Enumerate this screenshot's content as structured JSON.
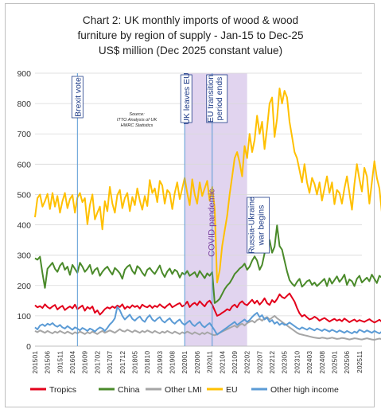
{
  "chart_data": {
    "type": "line",
    "title_lines": [
      "Chart 2: UK monthly imports of wood & wood",
      "furniture by region of supply - Jan-15 to Dec-25",
      "US$ million (Dec 2025 constant value)"
    ],
    "ylim": [
      0,
      900
    ],
    "yticks": [
      0,
      100,
      200,
      300,
      400,
      500,
      600,
      700,
      800,
      900
    ],
    "x_tick_labels": [
      "201501",
      "201506",
      "201511",
      "201604",
      "201609",
      "201702",
      "201707",
      "201712",
      "201805",
      "201810",
      "201903",
      "201908",
      "202001",
      "202006",
      "202011",
      "202104",
      "202109",
      "202202",
      "202207",
      "202212",
      "202305",
      "202310",
      "202403",
      "202408",
      "202501",
      "202506",
      "202511"
    ],
    "x_start": "2015-01",
    "x_end": "2025-12",
    "source_lines": [
      "Source:",
      "ITTO Analysis of UK",
      "HMRC Statistics"
    ],
    "annotations": {
      "brexit": {
        "label": "Brexit vote",
        "date": "2016-06"
      },
      "uk_leaves": {
        "label": "UK leaves EU",
        "date": "2020-01"
      },
      "transition": {
        "label_lines": [
          "EU transition",
          "period ends"
        ],
        "date": "2020-12"
      },
      "covid": {
        "label": "COVID pandemic",
        "start": "2020-01",
        "end": "2022-02"
      },
      "ukraine": {
        "label_lines": [
          "Russia-Ukraine",
          "war begins"
        ],
        "date": "2022-02"
      }
    },
    "series": [
      {
        "name": "Tropics",
        "color": "#e3001b",
        "start": "2015-01",
        "values": [
          135,
          128,
          132,
          126,
          138,
          129,
          124,
          131,
          136,
          121,
          128,
          133,
          119,
          126,
          131,
          125,
          137,
          122,
          128,
          134,
          117,
          129,
          123,
          131,
          110,
          118,
          104,
          112,
          122,
          128,
          124,
          131,
          126,
          134,
          129,
          138,
          123,
          131,
          126,
          135,
          129,
          133,
          124,
          137,
          131,
          128,
          135,
          126,
          133,
          129,
          138,
          131,
          126,
          134,
          140,
          128,
          133,
          138,
          142,
          131,
          136,
          147,
          129,
          138,
          143,
          135,
          148,
          139,
          131,
          144,
          150,
          137,
          118,
          100,
          104,
          110,
          115,
          122,
          118,
          131,
          137,
          128,
          142,
          148,
          139,
          135,
          144,
          153,
          141,
          150,
          137,
          146,
          158,
          142,
          136,
          152,
          144,
          155,
          171,
          162,
          158,
          166,
          174,
          160,
          147,
          126,
          108,
          98,
          103,
          95,
          88,
          91,
          97,
          92,
          84,
          89,
          93,
          87,
          81,
          86,
          90,
          84,
          88,
          82,
          91,
          85,
          79,
          84,
          88,
          81,
          86,
          83,
          80,
          85,
          89,
          83,
          78,
          82,
          87,
          80,
          84,
          79,
          83,
          86,
          80,
          77,
          82,
          85,
          79,
          81,
          84,
          78,
          80,
          83,
          82,
          79,
          81,
          84,
          78,
          80,
          82
        ]
      },
      {
        "name": "China",
        "color": "#4a8a2a",
        "start": "2015-01",
        "values": [
          290,
          285,
          295,
          240,
          192,
          255,
          265,
          275,
          255,
          245,
          265,
          275,
          252,
          262,
          235,
          268,
          255,
          242,
          275,
          262,
          245,
          255,
          268,
          238,
          252,
          258,
          232,
          245,
          255,
          262,
          248,
          236,
          258,
          250,
          240,
          222,
          252,
          262,
          268,
          248,
          238,
          264,
          256,
          242,
          232,
          252,
          258,
          246,
          238,
          252,
          266,
          242,
          228,
          246,
          256,
          238,
          252,
          246,
          226,
          242,
          236,
          248,
          232,
          238,
          244,
          228,
          248,
          236,
          224,
          240,
          232,
          244,
          142,
          148,
          156,
          172,
          188,
          200,
          208,
          222,
          238,
          246,
          256,
          262,
          272,
          252,
          262,
          282,
          296,
          282,
          252,
          268,
          306,
          338,
          350,
          308,
          328,
          398,
          330,
          318,
          282,
          246,
          218,
          206,
          198,
          212,
          222,
          196,
          204,
          214,
          218,
          202,
          210,
          198,
          206,
          214,
          222,
          198,
          224,
          206,
          218,
          230,
          212,
          222,
          236,
          202,
          220,
          214,
          198,
          222,
          232,
          210,
          218,
          226,
          214,
          236,
          222,
          208,
          232,
          226,
          214,
          238,
          218,
          228,
          242,
          232,
          218,
          236,
          210,
          224,
          232,
          216,
          238,
          228,
          244,
          206,
          224,
          232,
          218,
          238,
          250
        ]
      },
      {
        "name": "Other LMI",
        "color": "#a6a6a6",
        "start": "2015-01",
        "values": [
          50,
          46,
          52,
          48,
          44,
          50,
          46,
          42,
          48,
          44,
          50,
          46,
          42,
          48,
          44,
          40,
          46,
          42,
          48,
          44,
          40,
          46,
          42,
          48,
          44,
          40,
          46,
          50,
          44,
          48,
          52,
          48,
          44,
          50,
          56,
          50,
          48,
          54,
          50,
          46,
          52,
          48,
          44,
          50,
          46,
          52,
          48,
          44,
          50,
          46,
          42,
          48,
          44,
          50,
          46,
          42,
          48,
          44,
          40,
          46,
          42,
          48,
          44,
          40,
          46,
          42,
          38,
          44,
          40,
          46,
          42,
          38,
          36,
          40,
          44,
          48,
          52,
          56,
          60,
          64,
          68,
          62,
          70,
          74,
          68,
          76,
          80,
          84,
          78,
          86,
          90,
          84,
          92,
          96,
          88,
          94,
          100,
          92,
          86,
          80,
          74,
          68,
          62,
          56,
          50,
          44,
          40,
          38,
          36,
          34,
          32,
          30,
          28,
          27,
          26,
          28,
          27,
          25,
          26,
          28,
          26,
          24,
          25,
          27,
          26,
          24,
          22,
          24,
          26,
          25,
          23,
          22,
          24,
          26,
          24,
          22,
          21,
          23,
          25,
          23,
          22,
          24,
          23,
          21,
          22,
          24,
          23,
          22,
          21,
          23,
          24,
          22,
          21,
          23,
          24,
          22,
          21,
          23,
          24,
          22,
          23
        ]
      },
      {
        "name": "EU",
        "color": "#ffc000",
        "start": "2015-01",
        "values": [
          425,
          488,
          500,
          460,
          478,
          502,
          452,
          505,
          460,
          495,
          440,
          478,
          505,
          455,
          485,
          498,
          440,
          490,
          505,
          475,
          488,
          402,
          465,
          500,
          418,
          440,
          460,
          385,
          478,
          445,
          525,
          470,
          440,
          498,
          515,
          455,
          488,
          505,
          445,
          492,
          465,
          520,
          480,
          450,
          495,
          462,
          548,
          505,
          520,
          475,
          545,
          530,
          470,
          515,
          505,
          452,
          505,
          540,
          485,
          520,
          555,
          505,
          465,
          550,
          500,
          470,
          540,
          495,
          520,
          545,
          480,
          525,
          455,
          210,
          250,
          330,
          380,
          430,
          500,
          560,
          620,
          640,
          605,
          560,
          660,
          620,
          700,
          640,
          680,
          760,
          700,
          740,
          650,
          720,
          800,
          820,
          690,
          750,
          850,
          800,
          842,
          820,
          740,
          690,
          640,
          620,
          580,
          540,
          600,
          540,
          505,
          555,
          535,
          500,
          540,
          480,
          520,
          560,
          505,
          540,
          468,
          515,
          505,
          470,
          520,
          560,
          505,
          450,
          535,
          600,
          550,
          510,
          588,
          560,
          470,
          540,
          610,
          555,
          520,
          440,
          505,
          570,
          608,
          530,
          480,
          560,
          655,
          580,
          505,
          420,
          560,
          605,
          540,
          640,
          672,
          560,
          520,
          600,
          612,
          540,
          460
        ]
      },
      {
        "name": "Other high income",
        "color": "#5b9bd5",
        "start": "2015-01",
        "values": [
          62,
          55,
          68,
          72,
          66,
          74,
          70,
          76,
          68,
          64,
          70,
          62,
          58,
          66,
          60,
          54,
          62,
          58,
          52,
          60,
          56,
          50,
          58,
          54,
          48,
          56,
          62,
          58,
          50,
          60,
          72,
          80,
          92,
          130,
          118,
          100,
          88,
          96,
          104,
          90,
          84,
          92,
          98,
          86,
          80,
          94,
          102,
          88,
          82,
          90,
          96,
          84,
          78,
          86,
          92,
          80,
          74,
          82,
          88,
          76,
          70,
          78,
          84,
          72,
          66,
          74,
          80,
          68,
          62,
          70,
          76,
          64,
          52,
          38,
          44,
          50,
          56,
          62,
          68,
          74,
          80,
          70,
          76,
          82,
          88,
          80,
          86,
          96,
          104,
          110,
          96,
          102,
          88,
          94,
          80,
          86,
          74,
          80,
          70,
          76,
          70,
          72,
          78,
          72,
          66,
          60,
          56,
          62,
          58,
          54,
          60,
          56,
          52,
          58,
          54,
          50,
          56,
          52,
          48,
          54,
          50,
          46,
          52,
          48,
          44,
          50,
          46,
          42,
          48,
          44,
          54,
          50,
          46,
          52,
          48,
          44,
          50,
          46,
          42,
          48,
          44,
          50,
          46,
          42,
          48,
          54,
          60,
          58,
          56,
          62,
          58,
          54,
          50,
          46,
          52,
          48,
          44,
          40,
          42,
          38,
          36
        ]
      }
    ],
    "legend_placement": "bottom",
    "grid": "horizontal"
  }
}
